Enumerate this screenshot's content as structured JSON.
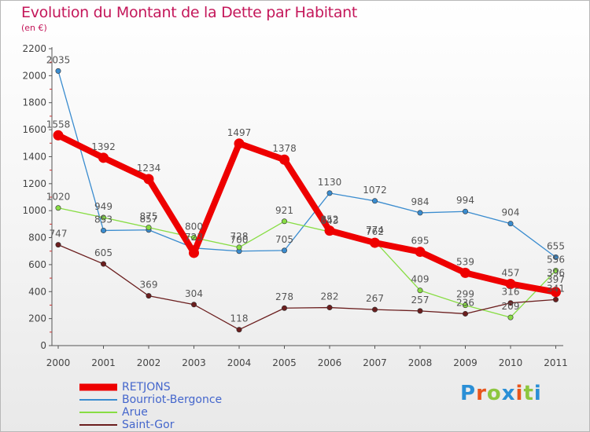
{
  "header": {
    "title": "Evolution du Montant de la Dette par Habitant",
    "subtitle": "(en €)"
  },
  "logo": {
    "text": "Proxiti",
    "letter_colors": [
      "#2a8fd6",
      "#e8551c",
      "#8dc63f",
      "#2a8fd6",
      "#e8551c",
      "#8dc63f",
      "#2a8fd6"
    ]
  },
  "chart_data": {
    "type": "line",
    "x": [
      "2000",
      "2001",
      "2002",
      "2003",
      "2004",
      "2005",
      "2006",
      "2007",
      "2008",
      "2009",
      "2010",
      "2011"
    ],
    "ylim": [
      0,
      2200
    ],
    "yticks": [
      "0",
      "200",
      "400",
      "600",
      "800",
      "1000",
      "1200",
      "1400",
      "1600",
      "1800",
      "2000",
      "2200"
    ],
    "grid": false,
    "legend_position": "bottom-left",
    "series": [
      {
        "name": "RETJONS",
        "color": "#ee0000",
        "values": [
          1558,
          1392,
          1234,
          687,
          1497,
          1378,
          852,
          762,
          695,
          539,
          457,
          397
        ],
        "labels": [
          "1558",
          "1392",
          "1234",
          "",
          "1497",
          "1378",
          "852",
          "762",
          "695",
          "539",
          "457",
          ""
        ]
      },
      {
        "name": "Bourriot-Bergonce",
        "color": "#3a8ccf",
        "values": [
          2035,
          853,
          857,
          723,
          700,
          705,
          1130,
          1072,
          984,
          994,
          904,
          655
        ],
        "labels": [
          "2035",
          "853",
          "857",
          "",
          "700",
          "705",
          "1130",
          "1072",
          "984",
          "994",
          "904",
          "655"
        ]
      },
      {
        "name": "Arue",
        "color": "#88dd44",
        "values": [
          1020,
          949,
          875,
          800,
          728,
          921,
          843,
          774,
          409,
          299,
          209,
          556
        ],
        "labels": [
          "1020",
          "949",
          "875",
          "800",
          "728",
          "921",
          "843",
          "774",
          "409",
          "299",
          "209",
          "556"
        ]
      },
      {
        "name": "Saint-Gor",
        "color": "#6b1e1e",
        "values": [
          747,
          605,
          369,
          304,
          118,
          278,
          282,
          267,
          257,
          236,
          316,
          341
        ],
        "labels": [
          "747",
          "605",
          "369",
          "304",
          "118",
          "278",
          "282",
          "267",
          "257",
          "236",
          "316",
          "341"
        ]
      }
    ],
    "extra_labels": [
      "723",
      "396",
      "397"
    ]
  }
}
